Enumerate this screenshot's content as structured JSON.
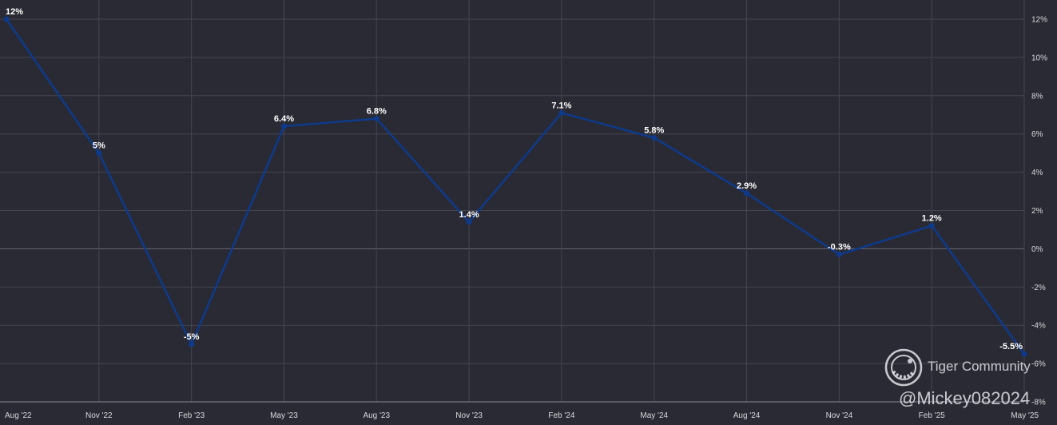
{
  "chart_data": {
    "type": "line",
    "x": [
      "Aug '22",
      "Nov '22",
      "Feb '23",
      "May '23",
      "Aug '23",
      "Nov '23",
      "Feb '24",
      "May '24",
      "Aug '24",
      "Nov '24",
      "Feb '25",
      "May '25"
    ],
    "series": [
      {
        "values": [
          12,
          5,
          -5,
          6.4,
          6.8,
          1.4,
          7.1,
          5.8,
          2.9,
          -0.3,
          1.2,
          -5.5
        ],
        "labels": [
          "12%",
          "5%",
          "-5%",
          "6.4%",
          "6.8%",
          "1.4%",
          "7.1%",
          "5.8%",
          "2.9%",
          "-0.3%",
          "1.2%",
          "-5.5%"
        ],
        "color": "#0d3a8c"
      }
    ],
    "y_ticks": [
      12,
      10,
      8,
      6,
      4,
      2,
      0,
      -2,
      -4,
      -6,
      -8
    ],
    "y_tick_labels": [
      "12%",
      "10%",
      "8%",
      "6%",
      "4%",
      "2%",
      "0%",
      "-2%",
      "-4%",
      "-6%",
      "-8%"
    ],
    "ylim": [
      -8,
      12
    ],
    "grid": true,
    "y_axis_position": "right"
  },
  "colors": {
    "background": "#2a2a34",
    "grid": "#45454f",
    "line": "#0d3a8c"
  },
  "watermark": {
    "brand": "Tiger Community",
    "user": "@Mickey082024",
    "logo_icon": "tiger-logo-icon"
  }
}
